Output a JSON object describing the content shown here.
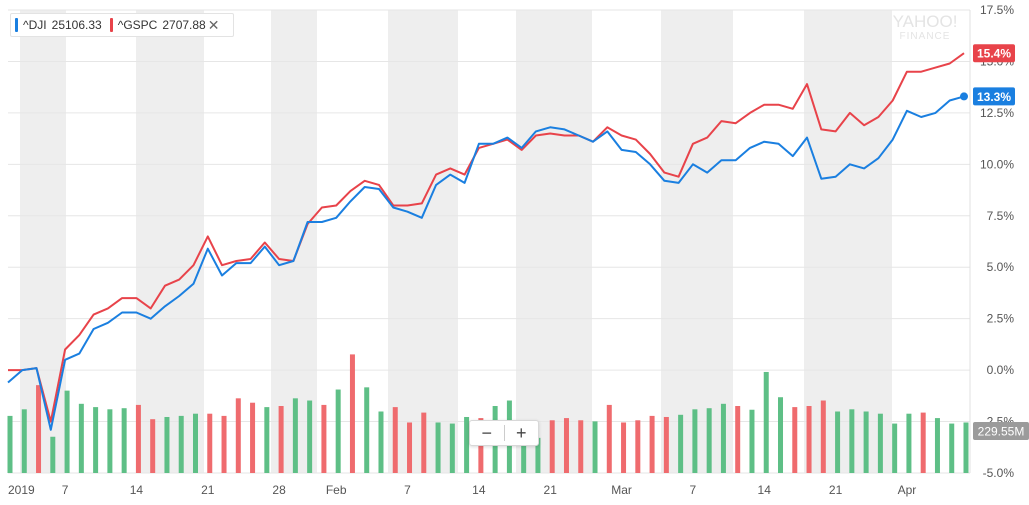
{
  "legend": {
    "dji": {
      "symbol": "^DJI",
      "value": "25106.33",
      "color": "#1a7fe0"
    },
    "gspc": {
      "symbol": "^GSPC",
      "value": "2707.88",
      "color": "#e8434a"
    },
    "close_icon": "close-icon"
  },
  "watermark": {
    "line1": "YAHOO!",
    "line2": "FINANCE"
  },
  "zoom": {
    "minus": "−",
    "plus": "+"
  },
  "volume_label": "229.55M",
  "colors": {
    "up_volume": "#5ebf86",
    "down_volume": "#ef6b6e",
    "dji": "#1a7fe0",
    "gspc": "#e8434a",
    "volume_tag": "#9b9b9b",
    "band": "#eeeeee"
  },
  "chart_data": {
    "type": "line",
    "y_axis": {
      "ticks": [
        "17.5%",
        "15.0%",
        "12.5%",
        "10.0%",
        "7.5%",
        "5.0%",
        "2.5%",
        "0.0%",
        "-2.5%",
        "-5.0%"
      ],
      "range": [
        -5.0,
        17.5
      ],
      "unit": "%",
      "position": "right"
    },
    "x_axis": {
      "ticks": [
        "2019",
        "7",
        "14",
        "21",
        "28",
        "Feb",
        "7",
        "14",
        "21",
        "Mar",
        "7",
        "14",
        "21",
        "Apr"
      ]
    },
    "grid": true,
    "series": [
      {
        "name": "^DJI",
        "color": "#1a7fe0",
        "last_label": "13.3%",
        "values": [
          -0.6,
          0.0,
          0.1,
          -2.9,
          0.5,
          0.8,
          2.0,
          2.3,
          2.8,
          2.8,
          2.5,
          3.1,
          3.6,
          4.2,
          5.9,
          4.6,
          5.2,
          5.2,
          6.0,
          5.1,
          5.3,
          7.2,
          7.2,
          7.4,
          8.2,
          8.9,
          8.8,
          7.9,
          7.7,
          7.4,
          9.0,
          9.5,
          9.1,
          11.0,
          11.0,
          11.3,
          10.8,
          11.6,
          11.8,
          11.7,
          11.4,
          11.1,
          11.6,
          10.7,
          10.6,
          10.0,
          9.2,
          9.1,
          10.0,
          9.6,
          10.2,
          10.2,
          10.8,
          11.1,
          11.0,
          10.4,
          11.3,
          9.3,
          9.4,
          10.0,
          9.8,
          10.3,
          11.2,
          12.6,
          12.3,
          12.5,
          13.1,
          13.3
        ]
      },
      {
        "name": "^GSPC",
        "color": "#e8434a",
        "last_label": "15.4%",
        "values": [
          0.0,
          0.0,
          0.1,
          -2.5,
          1.0,
          1.7,
          2.7,
          3.0,
          3.5,
          3.5,
          3.0,
          4.1,
          4.4,
          5.1,
          6.5,
          5.1,
          5.3,
          5.4,
          6.2,
          5.4,
          5.3,
          7.1,
          7.9,
          8.0,
          8.7,
          9.2,
          9.0,
          8.0,
          8.0,
          8.1,
          9.5,
          9.8,
          9.5,
          10.8,
          11.0,
          11.2,
          10.7,
          11.4,
          11.5,
          11.4,
          11.4,
          11.1,
          11.8,
          11.4,
          11.2,
          10.5,
          9.6,
          9.4,
          11.0,
          11.3,
          12.1,
          12.0,
          12.5,
          12.9,
          12.9,
          12.7,
          13.9,
          11.7,
          11.6,
          12.5,
          11.9,
          12.3,
          13.1,
          14.5,
          14.5,
          14.7,
          14.9,
          15.4
        ]
      }
    ],
    "volume": {
      "last_label": "229.55M",
      "values": [
        260,
        290,
        400,
        165,
        375,
        315,
        300,
        290,
        295,
        310,
        245,
        255,
        260,
        270,
        270,
        260,
        340,
        320,
        300,
        305,
        340,
        330,
        310,
        380,
        540,
        390,
        280,
        300,
        230,
        275,
        230,
        225,
        255,
        250,
        305,
        330,
        190,
        160,
        240,
        250,
        240,
        235,
        310,
        230,
        240,
        260,
        255,
        265,
        290,
        295,
        315,
        305,
        288,
        460,
        345,
        300,
        305,
        330,
        280,
        290,
        280,
        270,
        225,
        270,
        275,
        250,
        225,
        230
      ],
      "up": [
        1,
        1,
        0,
        1,
        1,
        1,
        1,
        1,
        1,
        0,
        0,
        1,
        1,
        1,
        0,
        0,
        0,
        0,
        1,
        0,
        1,
        1,
        0,
        1,
        0,
        1,
        1,
        0,
        0,
        0,
        1,
        1,
        1,
        0,
        1,
        1,
        1,
        1,
        0,
        0,
        0,
        1,
        0,
        0,
        0,
        0,
        0,
        1,
        1,
        1,
        1,
        0,
        1,
        1,
        1,
        0,
        0,
        0,
        1,
        1,
        1,
        1,
        1,
        1,
        0,
        1,
        1,
        1
      ]
    }
  }
}
